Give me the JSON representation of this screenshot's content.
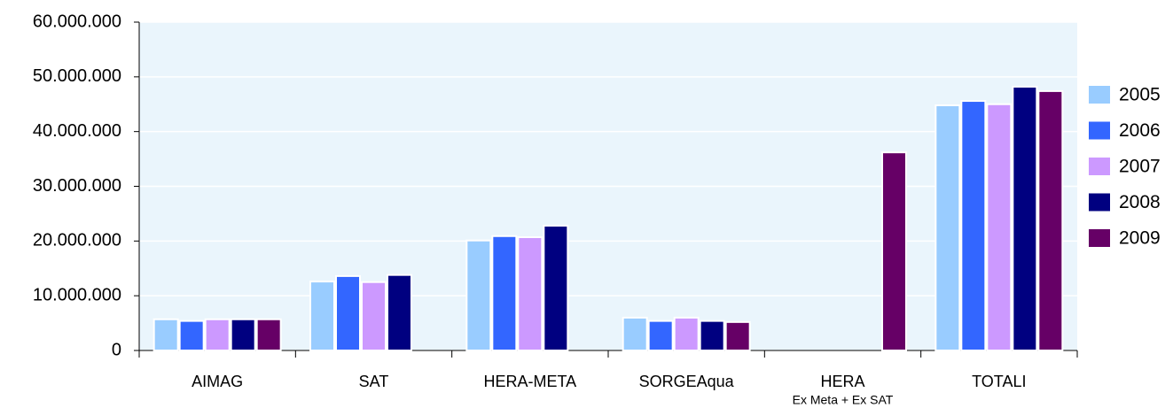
{
  "chart_data": {
    "type": "bar",
    "categories": [
      "AIMAG",
      "SAT",
      "HERA-META",
      "SORGEAqua",
      "HERA",
      "TOTALI"
    ],
    "annotations": [
      {
        "text": "Ex Meta + Ex SAT",
        "category": 4
      }
    ],
    "series": [
      {
        "name": "2005",
        "color": "#99ccff",
        "values": [
          5700000,
          12600000,
          20100000,
          6000000,
          null,
          44800000
        ]
      },
      {
        "name": "2006",
        "color": "#3366ff",
        "values": [
          5400000,
          13600000,
          20900000,
          5400000,
          null,
          45600000
        ]
      },
      {
        "name": "2007",
        "color": "#cc99ff",
        "values": [
          5700000,
          12500000,
          20700000,
          6000000,
          null,
          45000000
        ]
      },
      {
        "name": "2008",
        "color": "#000080",
        "values": [
          5700000,
          13800000,
          22800000,
          5400000,
          null,
          48200000
        ]
      },
      {
        "name": "2009",
        "color": "#660066",
        "values": [
          5700000,
          null,
          null,
          5200000,
          36200000,
          47400000
        ]
      }
    ],
    "ylim": [
      0,
      60000000
    ],
    "yticks": [
      0,
      {
        "value": 10000000,
        "label": "10.000.000"
      },
      {
        "value": 20000000,
        "label": "20.000.000"
      },
      {
        "value": 30000000,
        "label": "30.000.000"
      },
      {
        "value": 40000000,
        "label": "40.000.000"
      },
      {
        "value": 50000000,
        "label": "50.000.000"
      },
      {
        "value": 60000000,
        "label": "60.000.000"
      }
    ],
    "grid": true,
    "legend": "right"
  }
}
